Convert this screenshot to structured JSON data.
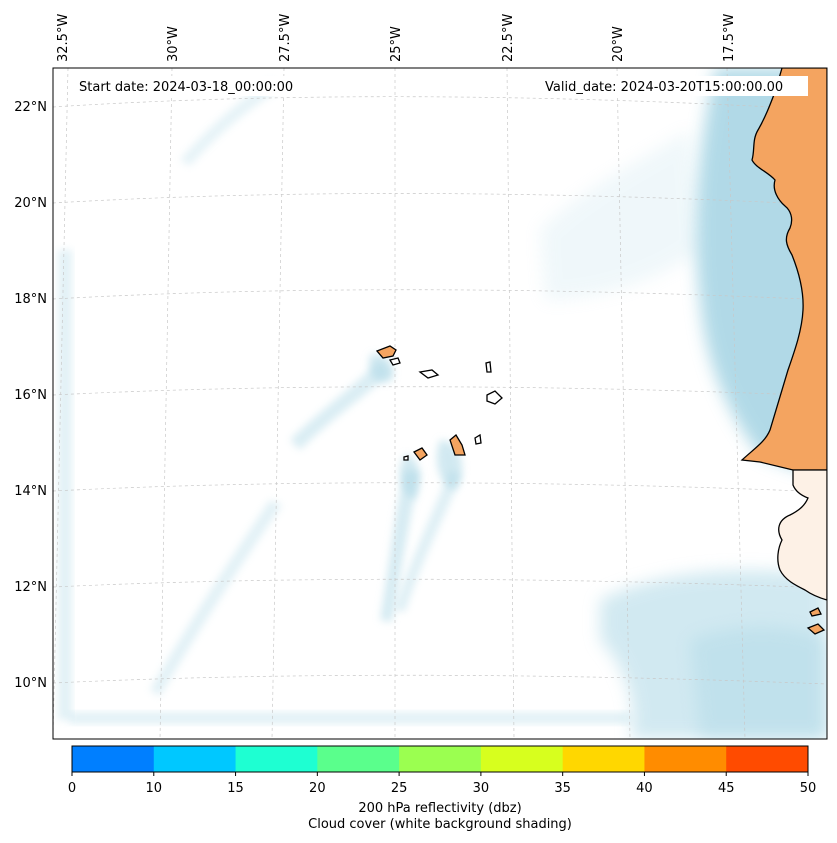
{
  "map": {
    "start_date_label": "Start date: 2024-03-18_00:00:00",
    "valid_date_label": "Valid_date: 2024-03-20T15:00:00.00",
    "land_color": "#f4a460",
    "cloud_color": "#add8e6",
    "lon_labels": [
      "32.5°W",
      "30°W",
      "27.5°W",
      "25°W",
      "22.5°W",
      "20°W",
      "17.5°W"
    ],
    "lat_labels": [
      "22°N",
      "20°N",
      "18°N",
      "16°N",
      "14°N",
      "12°N",
      "10°N"
    ]
  },
  "colorbar": {
    "ticks": [
      "0",
      "10",
      "15",
      "20",
      "25",
      "30",
      "35",
      "40",
      "45",
      "50"
    ],
    "colors": [
      "#007fff",
      "#00c8ff",
      "#1effd2",
      "#5aff8c",
      "#9bff50",
      "#d7ff1e",
      "#ffd700",
      "#ff8c00",
      "#ff4b00"
    ],
    "title_line1": "200 hPa reflectivity (dbz)",
    "title_line2": "Cloud cover (white background shading)"
  }
}
